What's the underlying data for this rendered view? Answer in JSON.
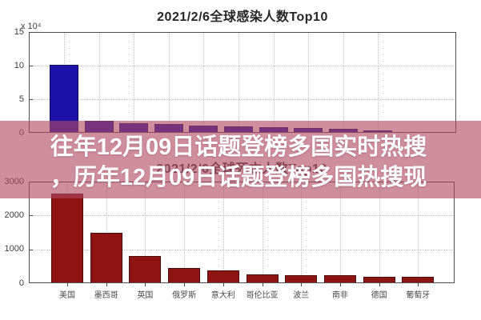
{
  "overlay": {
    "line1": "往年12月09日话题登榜多国实时热搜",
    "line2": "，历年12月09日话题登榜多国热搜现",
    "band_color": "#cf8e9e",
    "text_color": "#ffffff"
  },
  "chart_data": [
    {
      "type": "bar",
      "title": "2021/2/6全球感染人数Top10",
      "y_unit_label": "x 10⁴",
      "ylim": [
        0,
        15
      ],
      "yticks": [
        0,
        5,
        10,
        15
      ],
      "values": [
        10.1,
        1.8,
        1.4,
        1.3,
        1.1,
        0.95,
        0.8,
        0.7,
        0.55,
        0.4
      ],
      "bar_color": "#1c12aa",
      "first_bar_color": "#1c12aa",
      "grid": "on",
      "categories_note": "x-axis labels hidden behind text banner"
    },
    {
      "type": "bar",
      "title": "2021/2/6全球死亡人数Top10",
      "ylim": [
        0,
        3000
      ],
      "yticks": [
        0,
        1000,
        2000,
        3000
      ],
      "categories": [
        "美国",
        "墨西哥",
        "英国",
        "俄罗斯",
        "意大利",
        "哥伦比亚",
        "波兰",
        "南非",
        "德国",
        "葡萄牙"
      ],
      "values": [
        2650,
        1480,
        800,
        460,
        370,
        270,
        245,
        245,
        200,
        185
      ],
      "bar_color": "#8e1414",
      "grid": "on",
      "title_note": "title mostly hidden behind text banner"
    }
  ]
}
